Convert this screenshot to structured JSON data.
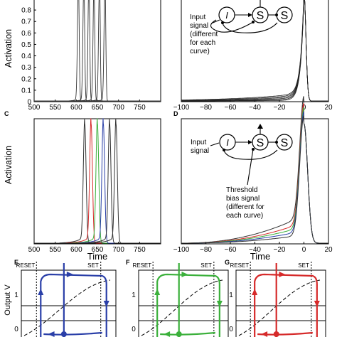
{
  "figure": {
    "panel_letters": [
      "C",
      "D",
      "E",
      "F",
      "G"
    ],
    "ylabel": "Activation",
    "xlabel": "Time",
    "phase_ylabel": "Output V",
    "phase_level_1": "1",
    "phase_level_0": "0",
    "reset_label": "RESET",
    "set_label": "SET",
    "diagram_B": {
      "input_label_lines": [
        "Input",
        "signal",
        "(different",
        "for each",
        "curve)"
      ],
      "node_labels": [
        "I",
        "S",
        "S"
      ]
    },
    "diagram_D": {
      "input_label_lines": [
        "Input",
        "signal"
      ],
      "threshold_label_lines": [
        "Threshold",
        "bias signal",
        "(different for",
        "each curve)"
      ],
      "node_labels": [
        "I",
        "S",
        "S"
      ]
    }
  },
  "chart_data": [
    {
      "id": "A",
      "type": "line",
      "xlim": [
        500,
        800
      ],
      "ylim": [
        0,
        0.9
      ],
      "xticks": [
        "500",
        "550",
        "600",
        "650",
        "700",
        "750"
      ],
      "yticks": [
        "0",
        "0.1",
        "0.2",
        "0.3",
        "0.4",
        "0.5",
        "0.6",
        "0.7",
        "0.8"
      ],
      "ylabel": "Activation",
      "series": [
        {
          "color": "#333333",
          "peak_x": 605
        },
        {
          "color": "#333333",
          "peak_x": 618
        },
        {
          "color": "#333333",
          "peak_x": 630
        },
        {
          "color": "#333333",
          "peak_x": 642
        },
        {
          "color": "#333333",
          "peak_x": 655
        },
        {
          "color": "#333333",
          "peak_x": 668
        }
      ]
    },
    {
      "id": "B",
      "type": "line",
      "xlim": [
        -100,
        20
      ],
      "ylim": [
        0,
        0.9
      ],
      "xticks": [
        "−100",
        "−80",
        "−60",
        "−40",
        "−20",
        "0",
        "20"
      ],
      "aligned_curves": 6,
      "color": "#222222"
    },
    {
      "id": "C",
      "type": "line",
      "xlim": [
        500,
        800
      ],
      "ylim": [
        0,
        0.9
      ],
      "xticks": [
        "500",
        "550",
        "600",
        "650",
        "700",
        "750"
      ],
      "ylabel": "Activation",
      "xlabel": "Time",
      "series": [
        {
          "color": "#333333",
          "peak_x": 620
        },
        {
          "color": "#d62a2a",
          "peak_x": 635
        },
        {
          "color": "#3bb03b",
          "peak_x": 650
        },
        {
          "color": "#2a3fa8",
          "peak_x": 664
        },
        {
          "color": "#333333",
          "peak_x": 679
        },
        {
          "color": "#333333",
          "peak_x": 694
        }
      ]
    },
    {
      "id": "D",
      "type": "line",
      "xlim": [
        -100,
        20
      ],
      "ylim": [
        0,
        0.9
      ],
      "xticks": [
        "−100",
        "−80",
        "−60",
        "−40",
        "−20",
        "0",
        "20"
      ],
      "xlabel": "Time",
      "series": [
        {
          "color": "#333333",
          "baseline": 0.2
        },
        {
          "color": "#d62a2a",
          "baseline": 0.15
        },
        {
          "color": "#3bb03b",
          "baseline": 0.12
        },
        {
          "color": "#2a3fa8",
          "baseline": 0.09
        },
        {
          "color": "#333333",
          "baseline": 0.06
        }
      ]
    },
    {
      "id": "E",
      "type": "phase",
      "color": "#2a3fa8",
      "ylabel": "Output V"
    },
    {
      "id": "F",
      "type": "phase",
      "color": "#3bb03b"
    },
    {
      "id": "G",
      "type": "phase",
      "color": "#d62a2a"
    }
  ]
}
